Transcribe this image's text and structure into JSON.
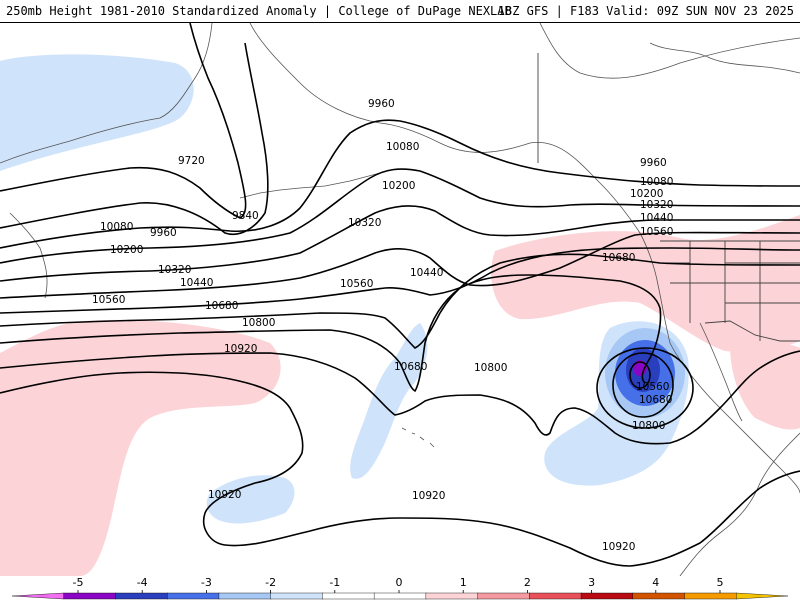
{
  "header": {
    "left_title": "250mb Height 1981-2010 Standardized Anomaly | College of DuPage NEXLAB",
    "right_title": "18Z GFS | F183 Valid: 09Z SUN NOV 23 2025"
  },
  "contour_labels": {
    "c9720": "9720",
    "c9840": "9840",
    "c9960_w": "9960",
    "c9960_n": "9960",
    "c9960_e": "9960",
    "c10080_w": "10080",
    "c10080_n": "10080",
    "c10080_e": "10080",
    "c10200_w": "10200",
    "c10200_c": "10200",
    "c10200_e": "10200",
    "c10320_w": "10320",
    "c10320_c": "10320",
    "c10320_e": "10320",
    "c10440_w": "10440",
    "c10440_c": "10440",
    "c10440_e": "10440",
    "c10560_w": "10560",
    "c10560_c": "10560",
    "c10560_e": "10560",
    "c10560_low": "10560",
    "c10680_w": "10680",
    "c10680_c": "10680",
    "c10680_e": "10680",
    "c10680_low": "10680",
    "c10800_w": "10800",
    "c10800_c": "10800",
    "c10800_e": "10800",
    "c10920_w": "10920",
    "c10920_sw": "10920",
    "c10920_s": "10920",
    "c10920_se": "10920"
  },
  "colorbar": {
    "ticks": [
      "-5",
      "-4",
      "-3",
      "-2",
      "-1",
      "0",
      "1",
      "2",
      "3",
      "4",
      "5"
    ],
    "colors": [
      "#f26df2",
      "#8a05c4",
      "#2a3fbd",
      "#4670e8",
      "#a7c8f5",
      "#cfe3fb",
      "#ffffff",
      "#ffffff",
      "#fcd3d6",
      "#f59aa0",
      "#e8505a",
      "#b80c12",
      "#d35400",
      "#f59b00",
      "#f5c400"
    ]
  },
  "colors": {
    "neg_light": "#cfe3fb",
    "neg_mid": "#a7c8f5",
    "neg_strong": "#4670e8",
    "neg_deep": "#2a3fbd",
    "neg_purple": "#8a05c4",
    "neg_magenta": "#d05bd8",
    "pos_light": "#fcd3d6"
  }
}
